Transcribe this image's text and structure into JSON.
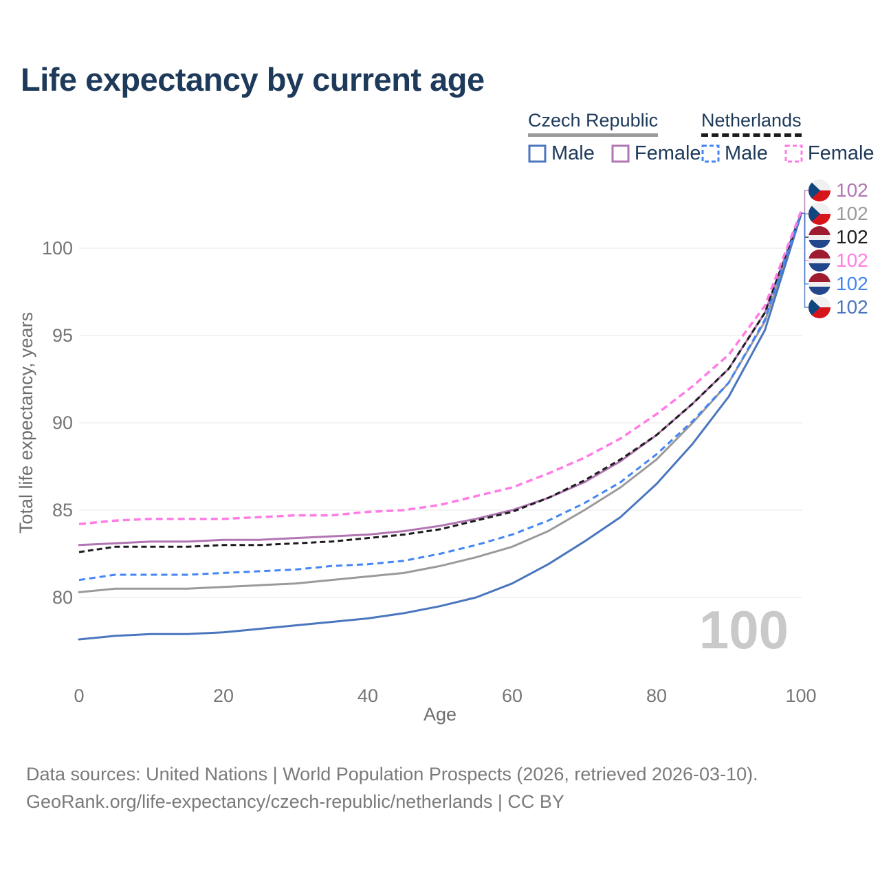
{
  "title": "Life expectancy by current age",
  "legend": {
    "groups": [
      {
        "id": "cz",
        "title": "Czech Republic",
        "underline": "solid",
        "underline_series": "cz_total",
        "items": [
          {
            "label": "Male",
            "series": "cz_male",
            "dashed": false
          },
          {
            "label": "Female",
            "series": "cz_female",
            "dashed": false
          }
        ]
      },
      {
        "id": "nl",
        "title": "Netherlands",
        "underline": "dashed",
        "underline_series": "nl_total",
        "items": [
          {
            "label": "Male",
            "series": "nl_male",
            "dashed": true
          },
          {
            "label": "Female",
            "series": "nl_female",
            "dashed": true
          }
        ]
      }
    ]
  },
  "chart_data": {
    "type": "line",
    "title": "Life expectancy by current age",
    "xlabel": "Age",
    "ylabel": "Total life expectancy, years",
    "x": [
      0,
      5,
      10,
      15,
      20,
      25,
      30,
      35,
      40,
      45,
      50,
      55,
      60,
      65,
      70,
      75,
      80,
      85,
      90,
      95,
      100
    ],
    "x_ticks": [
      0,
      20,
      40,
      60,
      80,
      100
    ],
    "y_ticks": [
      80,
      85,
      90,
      95,
      100
    ],
    "xlim": [
      0,
      100
    ],
    "ylim": [
      76.5,
      103.5
    ],
    "grid": "horizontal",
    "legend_position": "top-right",
    "watermark": "100",
    "series": [
      {
        "id": "cz_female",
        "name": "Czech Republic Female",
        "color": "#b175b1",
        "dash": null,
        "width": 3,
        "values": [
          83.0,
          83.1,
          83.2,
          83.2,
          83.3,
          83.3,
          83.4,
          83.5,
          83.6,
          83.8,
          84.1,
          84.5,
          85.0,
          85.7,
          86.6,
          87.8,
          89.3,
          91.1,
          93.1,
          96.3,
          102.0
        ]
      },
      {
        "id": "cz_total",
        "name": "Czech Republic",
        "color": "#9a9a9a",
        "dash": null,
        "width": 3,
        "values": [
          80.3,
          80.5,
          80.5,
          80.5,
          80.6,
          80.7,
          80.8,
          81.0,
          81.2,
          81.4,
          81.8,
          82.3,
          82.9,
          83.8,
          85.0,
          86.3,
          87.9,
          90.0,
          92.3,
          95.8,
          101.9
        ]
      },
      {
        "id": "cz_male",
        "name": "Czech Republic Male",
        "color": "#4a76be",
        "dash": null,
        "width": 3,
        "values": [
          77.6,
          77.8,
          77.9,
          77.9,
          78.0,
          78.2,
          78.4,
          78.6,
          78.8,
          79.1,
          79.5,
          80.0,
          80.8,
          81.9,
          83.2,
          84.6,
          86.5,
          88.8,
          91.5,
          95.3,
          101.9
        ]
      },
      {
        "id": "nl_total",
        "name": "Netherlands",
        "color": "#1c1c1c",
        "dash": [
          8,
          5
        ],
        "width": 3,
        "values": [
          82.6,
          82.9,
          82.9,
          82.9,
          83.0,
          83.0,
          83.1,
          83.2,
          83.4,
          83.6,
          83.9,
          84.4,
          84.9,
          85.7,
          86.7,
          87.9,
          89.3,
          91.1,
          93.1,
          96.3,
          102.0
        ]
      },
      {
        "id": "nl_male",
        "name": "Netherlands Male",
        "color": "#4285f4",
        "dash": [
          9,
          6
        ],
        "width": 3,
        "values": [
          81.0,
          81.3,
          81.3,
          81.3,
          81.4,
          81.5,
          81.6,
          81.8,
          81.9,
          82.1,
          82.5,
          83.0,
          83.6,
          84.4,
          85.4,
          86.6,
          88.2,
          90.1,
          92.3,
          95.9,
          102.0
        ]
      },
      {
        "id": "nl_female",
        "name": "Netherlands Female",
        "color": "#ff7ce5",
        "dash": [
          10,
          6
        ],
        "width": 3.5,
        "values": [
          84.2,
          84.4,
          84.5,
          84.5,
          84.5,
          84.6,
          84.7,
          84.7,
          84.9,
          85.0,
          85.3,
          85.8,
          86.3,
          87.1,
          88.0,
          89.1,
          90.5,
          92.1,
          93.9,
          96.7,
          102.1
        ]
      }
    ],
    "end_labels": [
      {
        "series": "cz_female",
        "flag": "cz",
        "value": "102"
      },
      {
        "series": "cz_total",
        "flag": "cz",
        "value": "102"
      },
      {
        "series": "nl_total",
        "flag": "nl",
        "value": "102"
      },
      {
        "series": "nl_female",
        "flag": "nl",
        "value": "102"
      },
      {
        "series": "nl_male",
        "flag": "nl",
        "value": "102"
      },
      {
        "series": "cz_male",
        "flag": "cz",
        "value": "102"
      }
    ]
  },
  "colors": {
    "title_text": "#1e3a5a",
    "axis_text": "#757575",
    "axis_title_text": "#6e6e6e",
    "grid": "#e7e7e7",
    "watermark": "#c9c9c9",
    "footer_text": "#7a7a7a"
  },
  "flags": {
    "cz": {
      "white": "#f0f0f0",
      "red": "#d7141a",
      "blue": "#11457e"
    },
    "nl": {
      "red": "#9e1b30",
      "white": "#f0f0f0",
      "blue": "#21468b"
    }
  },
  "footer": {
    "line1": "Data sources: United Nations | World Population Prospects (2026, retrieved 2026-03-10).",
    "line2": "GeoRank.org/life-expectancy/czech-republic/netherlands | CC BY"
  }
}
